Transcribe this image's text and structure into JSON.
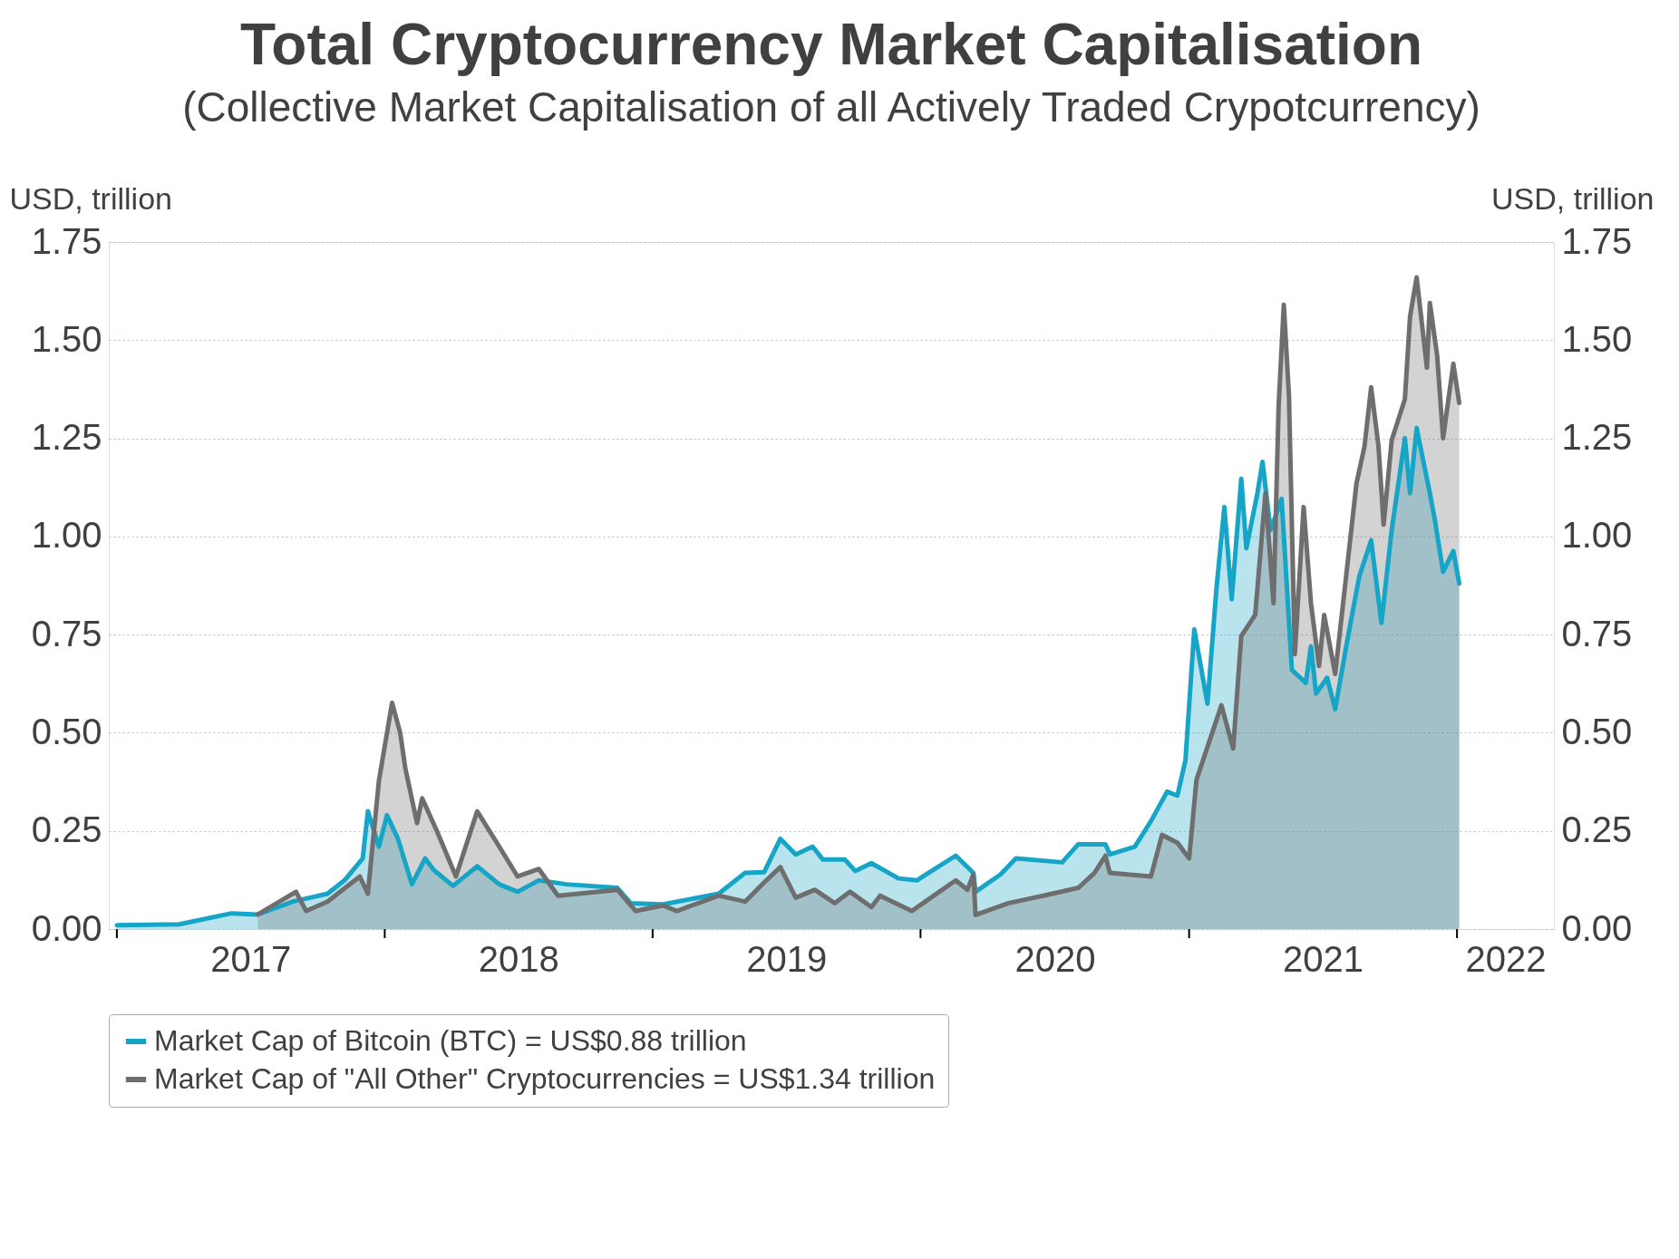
{
  "chart_data": {
    "type": "area",
    "title": "Total Cryptocurrency Market Capitalisation",
    "subtitle": "(Collective Market Capitalisation of all Actively Traded Crypotcurrency)",
    "ylabel": "USD, trillion",
    "y2label": "USD, trillion",
    "xlim": [
      "2016-12-21",
      "2022-05-13"
    ],
    "xticks": [
      {
        "value": "2017-01-01",
        "label": null
      },
      {
        "value": "2017-07-02",
        "label": "2017"
      },
      {
        "value": "2018-01-01",
        "label": null
      },
      {
        "value": "2018-07-02",
        "label": "2018"
      },
      {
        "value": "2019-01-01",
        "label": null
      },
      {
        "value": "2019-07-02",
        "label": "2019"
      },
      {
        "value": "2020-01-01",
        "label": null
      },
      {
        "value": "2020-07-02",
        "label": "2020"
      },
      {
        "value": "2021-01-01",
        "label": null
      },
      {
        "value": "2021-07-02",
        "label": "2021"
      },
      {
        "value": "2022-01-01",
        "label": null
      },
      {
        "value": "2022-03-08",
        "label": "2022"
      }
    ],
    "ylim": [
      0,
      1.75
    ],
    "yticks": [
      {
        "value": 0,
        "label": "0.00"
      },
      {
        "value": 0.25,
        "label": "0.25"
      },
      {
        "value": 0.5,
        "label": "0.50"
      },
      {
        "value": 0.75,
        "label": "0.75"
      },
      {
        "value": 1,
        "label": "1.00"
      },
      {
        "value": 1.25,
        "label": "1.25"
      },
      {
        "value": 1.5,
        "label": "1.50"
      },
      {
        "value": 1.75,
        "label": "1.75"
      }
    ],
    "y2lim": [
      0,
      1.75
    ],
    "y2ticks": [
      {
        "value": 0,
        "label": "0.00"
      },
      {
        "value": 0.25,
        "label": "0.25"
      },
      {
        "value": 0.5,
        "label": "0.50"
      },
      {
        "value": 0.75,
        "label": "0.75"
      },
      {
        "value": 1,
        "label": "1.00"
      },
      {
        "value": 1.25,
        "label": "1.25"
      },
      {
        "value": 1.5,
        "label": "1.50"
      },
      {
        "value": 1.75,
        "label": "1.75"
      }
    ],
    "grid": "y",
    "legend": "bottom",
    "series": [
      {
        "name": "Market Cap of Bitcoin (BTC) = US$0.88 trillion",
        "color": "#16a5c6",
        "x": [
          "2017-01-01",
          "2017-03-27",
          "2017-06-06",
          "2017-07-12",
          "2017-08-29",
          "2017-10-15",
          "2017-11-07",
          "2017-12-02",
          "2017-12-09",
          "2017-12-24",
          "2018-01-04",
          "2018-01-19",
          "2018-02-07",
          "2018-02-25",
          "2018-03-09",
          "2018-04-04",
          "2018-05-07",
          "2018-06-06",
          "2018-07-01",
          "2018-07-30",
          "2018-09-06",
          "2018-11-14",
          "2018-12-02",
          "2019-01-15",
          "2019-04-01",
          "2019-05-07",
          "2019-06-02",
          "2019-06-24",
          "2019-07-15",
          "2019-08-07",
          "2019-08-21",
          "2019-09-20",
          "2019-10-04",
          "2019-10-26",
          "2019-12-02",
          "2019-12-27",
          "2020-02-18",
          "2020-03-13",
          "2020-03-16",
          "2020-04-19",
          "2020-05-10",
          "2020-07-12",
          "2020-08-03",
          "2020-09-09",
          "2020-09-15",
          "2020-10-19",
          "2020-11-10",
          "2020-12-02",
          "2020-12-16",
          "2020-12-27",
          "2021-01-08",
          "2021-01-26",
          "2021-02-07",
          "2021-02-18",
          "2021-02-28",
          "2021-03-13",
          "2021-03-20",
          "2021-04-04",
          "2021-04-11",
          "2021-04-22",
          "2021-05-07",
          "2021-05-21",
          "2021-06-09",
          "2021-06-16",
          "2021-06-23",
          "2021-07-08",
          "2021-07-19",
          "2021-08-03",
          "2021-08-21",
          "2021-09-06",
          "2021-09-20",
          "2021-10-04",
          "2021-10-22",
          "2021-10-29",
          "2021-11-07",
          "2021-11-25",
          "2021-12-02",
          "2021-12-13",
          "2021-12-27",
          "2022-01-04"
        ],
        "values": [
          0.01,
          0.012,
          0.04,
          0.037,
          0.07,
          0.09,
          0.124,
          0.18,
          0.3,
          0.21,
          0.29,
          0.23,
          0.114,
          0.18,
          0.15,
          0.11,
          0.16,
          0.114,
          0.095,
          0.124,
          0.114,
          0.105,
          0.066,
          0.063,
          0.09,
          0.143,
          0.145,
          0.23,
          0.19,
          0.21,
          0.177,
          0.177,
          0.148,
          0.168,
          0.129,
          0.124,
          0.187,
          0.143,
          0.095,
          0.139,
          0.18,
          0.17,
          0.216,
          0.216,
          0.19,
          0.21,
          0.275,
          0.35,
          0.34,
          0.43,
          0.763,
          0.574,
          0.863,
          1.075,
          0.84,
          1.147,
          0.97,
          1.11,
          1.19,
          1.016,
          1.096,
          0.66,
          0.627,
          0.72,
          0.6,
          0.64,
          0.56,
          0.72,
          0.9,
          0.99,
          0.78,
          1.016,
          1.25,
          1.11,
          1.276,
          1.11,
          1.04,
          0.91,
          0.963,
          0.88
        ]
      },
      {
        "name": "Market Cap of \"All Other\" Cryptocurrencies = US$1.34 trillion",
        "color": "#6e6e6e",
        "x": [
          "2017-07-12",
          "2017-09-02",
          "2017-09-16",
          "2017-10-15",
          "2017-11-28",
          "2017-12-09",
          "2017-12-24",
          "2018-01-11",
          "2018-01-22",
          "2018-01-29",
          "2018-02-14",
          "2018-02-21",
          "2018-03-13",
          "2018-04-08",
          "2018-05-07",
          "2018-06-06",
          "2018-07-01",
          "2018-07-30",
          "2018-08-25",
          "2018-11-14",
          "2018-12-09",
          "2019-01-15",
          "2019-02-03",
          "2019-04-01",
          "2019-05-07",
          "2019-06-02",
          "2019-06-24",
          "2019-07-15",
          "2019-08-10",
          "2019-09-06",
          "2019-09-27",
          "2019-10-26",
          "2019-11-07",
          "2019-12-20",
          "2020-02-18",
          "2020-03-05",
          "2020-03-13",
          "2020-03-16",
          "2020-04-30",
          "2020-06-16",
          "2020-08-03",
          "2020-08-25",
          "2020-09-09",
          "2020-09-15",
          "2020-11-10",
          "2020-11-25",
          "2020-12-16",
          "2021-01-01",
          "2021-01-11",
          "2021-02-14",
          "2021-03-02",
          "2021-03-13",
          "2021-04-01",
          "2021-04-15",
          "2021-04-26",
          "2021-05-03",
          "2021-05-10",
          "2021-05-17",
          "2021-05-25",
          "2021-06-06",
          "2021-06-16",
          "2021-06-27",
          "2021-07-04",
          "2021-07-19",
          "2021-08-03",
          "2021-08-17",
          "2021-08-28",
          "2021-09-06",
          "2021-09-16",
          "2021-09-23",
          "2021-10-04",
          "2021-10-22",
          "2021-10-29",
          "2021-11-07",
          "2021-11-21",
          "2021-11-25",
          "2021-12-05",
          "2021-12-13",
          "2021-12-27",
          "2022-01-04"
        ],
        "values": [
          0.037,
          0.095,
          0.046,
          0.07,
          0.134,
          0.09,
          0.377,
          0.576,
          0.5,
          0.41,
          0.27,
          0.333,
          0.25,
          0.134,
          0.3,
          0.21,
          0.134,
          0.153,
          0.085,
          0.1,
          0.046,
          0.06,
          0.046,
          0.085,
          0.07,
          0.119,
          0.158,
          0.08,
          0.1,
          0.066,
          0.095,
          0.056,
          0.085,
          0.046,
          0.124,
          0.1,
          0.139,
          0.036,
          0.066,
          0.085,
          0.105,
          0.143,
          0.187,
          0.143,
          0.134,
          0.24,
          0.22,
          0.18,
          0.38,
          0.57,
          0.46,
          0.746,
          0.8,
          1.11,
          0.83,
          1.335,
          1.59,
          1.36,
          0.7,
          1.075,
          0.83,
          0.67,
          0.8,
          0.65,
          0.9,
          1.135,
          1.23,
          1.38,
          1.23,
          1.03,
          1.245,
          1.35,
          1.56,
          1.66,
          1.43,
          1.595,
          1.46,
          1.25,
          1.44,
          1.34
        ]
      }
    ]
  }
}
